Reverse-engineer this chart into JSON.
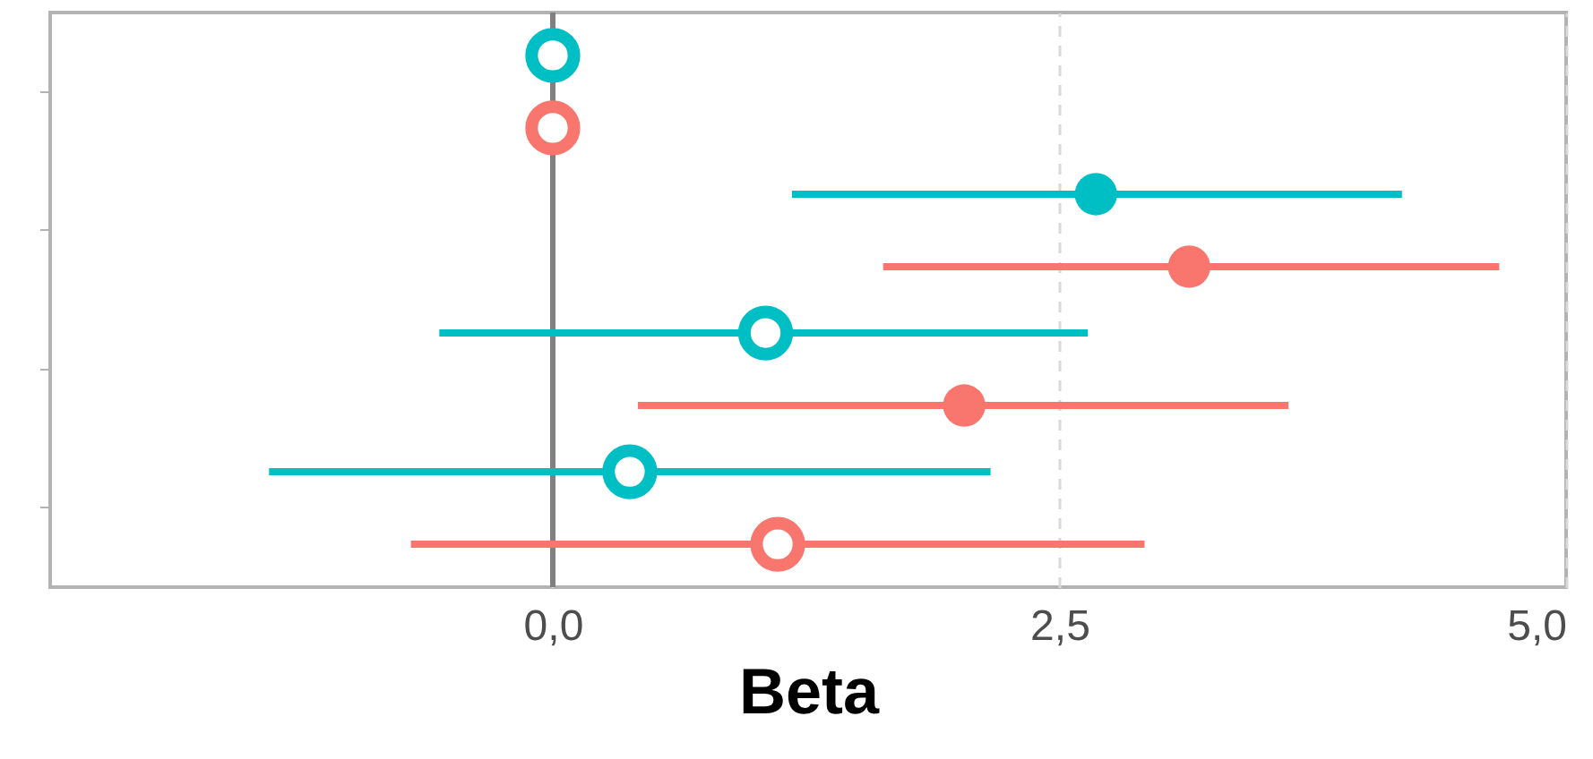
{
  "chart_data": {
    "type": "scatter",
    "xlabel": "Beta",
    "categories": [
      null,
      null,
      null,
      null
    ],
    "orientation": "horizontal",
    "xlim": [
      -2.48,
      5.0
    ],
    "xticks": [
      {
        "value": 0,
        "label": "0,0"
      },
      {
        "value": 2.5,
        "label": "2,5"
      },
      {
        "value": 5,
        "label": "5,0"
      }
    ],
    "grid": "x",
    "marker": "circle",
    "ref_lines": [
      {
        "axis": "x",
        "value": 0,
        "color": "#808080"
      }
    ],
    "series": [
      {
        "color": "#00bfc4",
        "values": [
          0,
          2.68,
          1.05,
          0.38
        ],
        "errors": [
          null,
          [
            1.18,
            4.19
          ],
          [
            -0.56,
            2.64
          ],
          [
            -1.4,
            2.16
          ]
        ]
      },
      {
        "color": "#f8766d",
        "values": [
          0,
          3.14,
          2.03,
          1.11
        ],
        "errors": [
          null,
          [
            1.63,
            4.67
          ],
          [
            0.42,
            3.63
          ],
          [
            -0.7,
            2.92
          ]
        ]
      }
    ]
  }
}
